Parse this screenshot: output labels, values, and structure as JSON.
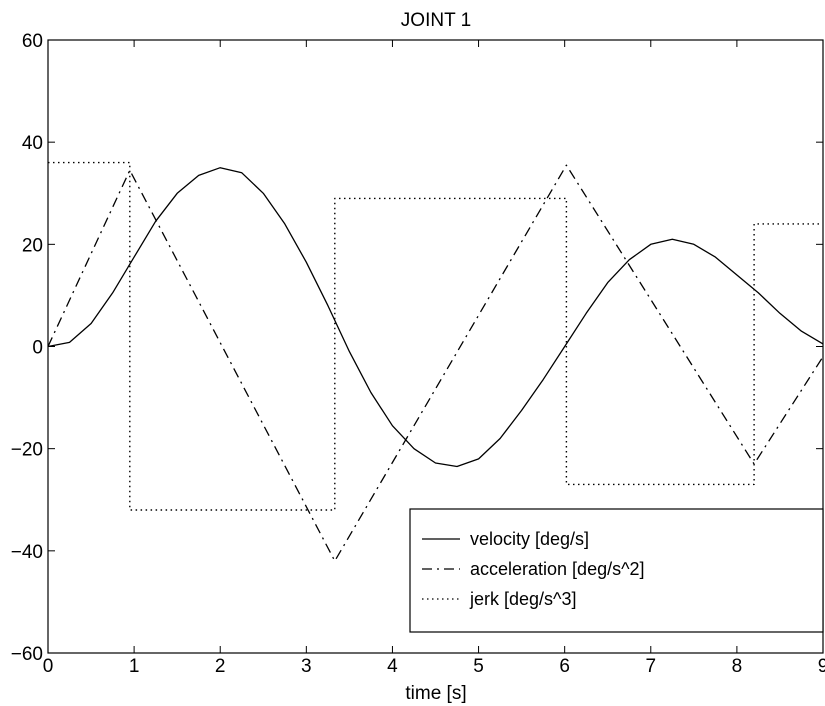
{
  "chart_data": {
    "type": "line",
    "title": "JOINT 1",
    "xlabel": "time [s]",
    "ylabel": "",
    "xlim": [
      0,
      9
    ],
    "ylim": [
      -60,
      60
    ],
    "xticks": [
      0,
      1,
      2,
      3,
      4,
      5,
      6,
      7,
      8,
      9
    ],
    "yticks": [
      -60,
      -40,
      -20,
      0,
      20,
      40,
      60
    ],
    "xtick_labels": [
      "0",
      "1",
      "2",
      "3",
      "4",
      "5",
      "6",
      "7",
      "8",
      "9"
    ],
    "ytick_labels": [
      "−60",
      "−40",
      "−20",
      "0",
      "20",
      "40",
      "60"
    ],
    "grid": false,
    "legend_position": "bottom-right",
    "series": [
      {
        "name": "velocity [deg/s]",
        "style": "solid",
        "color": "#000000",
        "x": [
          0,
          0.25,
          0.5,
          0.75,
          1.0,
          1.25,
          1.5,
          1.75,
          2.0,
          2.25,
          2.5,
          2.75,
          3.0,
          3.25,
          3.5,
          3.75,
          4.0,
          4.25,
          4.5,
          4.75,
          5.0,
          5.25,
          5.5,
          5.75,
          6.0,
          6.25,
          6.5,
          6.75,
          7.0,
          7.25,
          7.5,
          7.75,
          8.0,
          8.25,
          8.5,
          8.75,
          9.0
        ],
        "y": [
          0.0,
          0.8,
          4.5,
          10.5,
          17.5,
          24.5,
          30.0,
          33.5,
          35.0,
          34.0,
          30.0,
          24.0,
          16.5,
          8.0,
          -1.0,
          -9.0,
          -15.5,
          -20.0,
          -22.8,
          -23.5,
          -22.0,
          -18.0,
          -12.5,
          -6.5,
          0.0,
          6.5,
          12.5,
          17.0,
          20.0,
          21.0,
          20.0,
          17.5,
          14.0,
          10.5,
          6.5,
          3.0,
          0.5
        ]
      },
      {
        "name": "acceleration [deg/s^2]",
        "style": "dashdot",
        "color": "#000000",
        "x": [
          0,
          0.95,
          3.33,
          6.02,
          8.2,
          9.0
        ],
        "y": [
          0,
          34.5,
          -42.0,
          35.5,
          -23.0,
          -2.0
        ]
      },
      {
        "name": "jerk [deg/s^3]",
        "style": "dotted",
        "color": "#000000",
        "x": [
          0,
          0.95,
          0.95,
          3.33,
          3.33,
          6.02,
          6.02,
          8.2,
          8.2,
          9.0
        ],
        "y": [
          36,
          36,
          -32,
          -32,
          29,
          29,
          -27,
          -27,
          24,
          24
        ]
      }
    ]
  }
}
